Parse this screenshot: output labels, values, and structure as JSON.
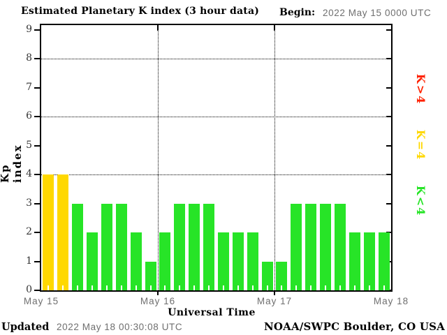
{
  "header": {
    "title": "Estimated Planetary K index (3 hour data)",
    "begin_label": "Begin:",
    "begin_value": "2022 May 15 0000 UTC"
  },
  "legend": [
    {
      "text": "K>4",
      "color": "#ff2200"
    },
    {
      "text": "K=4",
      "color": "#ffd800"
    },
    {
      "text": "K<4",
      "color": "#27e427"
    }
  ],
  "footer": {
    "updated_label": "Updated",
    "updated_value": "2022 May 18 00:30:08 UTC",
    "credit": "NOAA/SWPC Boulder, CO USA"
  },
  "chart_data": {
    "type": "bar",
    "title": "Estimated Planetary K index (3 hour data)",
    "begin": "2022 May 15 0000 UTC",
    "interval_hours": 3,
    "xlabel": "Universal Time",
    "ylabel": "Kp index",
    "ylim": [
      0,
      9
    ],
    "y_ticks": [
      0,
      1,
      2,
      3,
      4,
      5,
      6,
      7,
      8,
      9
    ],
    "y_gridlines": [
      4,
      6,
      8
    ],
    "grid": "dotted",
    "day_labels": [
      "May 15",
      "May 16",
      "May 17",
      "May 18"
    ],
    "readings_per_day": 8,
    "values": [
      4,
      4,
      3,
      2,
      3,
      3,
      2,
      1,
      2,
      3,
      3,
      3,
      2,
      2,
      2,
      1,
      1,
      3,
      3,
      3,
      3,
      2,
      2,
      2
    ],
    "color_rule": {
      "gt4": "#ff2200",
      "eq4": "#ffd800",
      "lt4": "#27e427"
    },
    "legend_position": "right"
  }
}
